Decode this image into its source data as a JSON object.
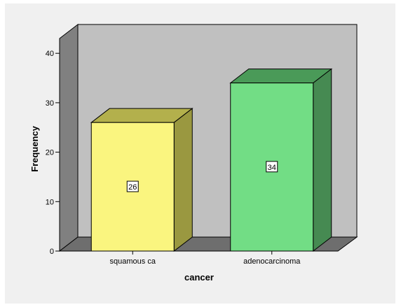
{
  "chart_data": {
    "type": "bar",
    "categories": [
      "squamous ca",
      "adenocarcinoma"
    ],
    "values": [
      26,
      34
    ],
    "data_labels": [
      "26",
      "34"
    ],
    "xlabel": "cancer",
    "ylabel": "Frequency",
    "ylim": [
      0,
      43
    ],
    "yticks": [
      0,
      10,
      20,
      30,
      40
    ],
    "ytick_labels": [
      "0",
      "10",
      "20",
      "30",
      "40"
    ],
    "style": "3d",
    "grid": false,
    "legend": "none",
    "colors": {
      "page_background": "#f0f0f0",
      "plot_back_wall": "#c0c0c0",
      "plot_side_wall": "#808080",
      "plot_floor": "#6e6e6e",
      "bars": [
        {
          "front": "#faf57f",
          "top": "#b3b04c",
          "side": "#9a9840"
        },
        {
          "front": "#72dd85",
          "top": "#4a9a58",
          "side": "#468a52"
        }
      ]
    }
  }
}
